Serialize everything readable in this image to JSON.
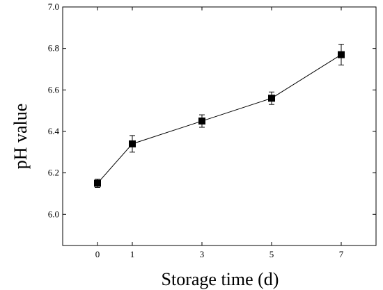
{
  "chart_data": {
    "type": "line",
    "title": "",
    "xlabel": "Storage time (d)",
    "ylabel": "pH value",
    "x": [
      0,
      1,
      3,
      5,
      7
    ],
    "x_tick_labels": [
      "0",
      "1",
      "3",
      "5",
      "7"
    ],
    "xlim": [
      -1,
      8
    ],
    "y_ticks": [
      6.0,
      6.2,
      6.4,
      6.6,
      6.8,
      7.0
    ],
    "y_tick_labels": [
      "6.0",
      "6.2",
      "6.4",
      "6.6",
      "6.8",
      "7.0"
    ],
    "ylim": [
      5.85,
      7.0
    ],
    "series": [
      {
        "values": [
          6.15,
          6.34,
          6.45,
          6.56,
          6.77
        ],
        "errors": [
          0.02,
          0.04,
          0.03,
          0.03,
          0.05
        ],
        "marker": "square",
        "color": "#000000"
      }
    ],
    "grid": false,
    "legend": "none"
  }
}
